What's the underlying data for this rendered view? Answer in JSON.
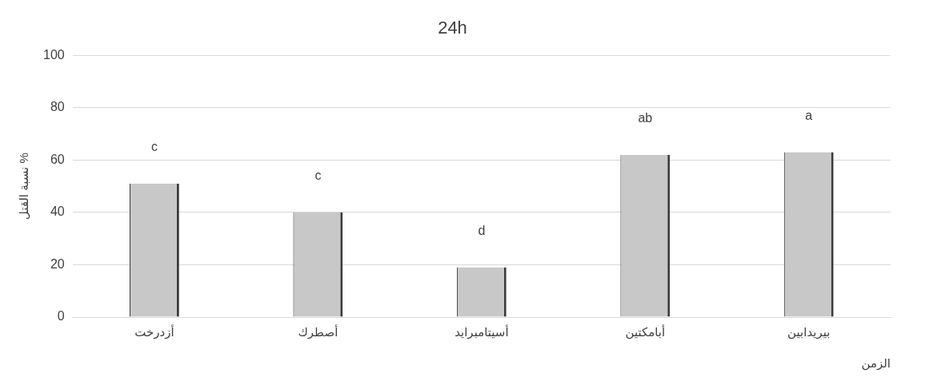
{
  "chart_data": {
    "type": "bar",
    "title": "24h",
    "xlabel": "الزمن",
    "ylabel": "نسبة القتل %",
    "categories": [
      "أزدرخت",
      "أصطرك",
      "أسيتامبرايد",
      "أبامكتين",
      "بيريدابين"
    ],
    "values": [
      51,
      40,
      19,
      62,
      63
    ],
    "color": "#c8c8c8",
    "ylim": [
      0,
      100
    ],
    "yticks": [
      0,
      20,
      40,
      60,
      80,
      100
    ],
    "grid": "y",
    "legend": false,
    "value_labels": [
      "c",
      "c",
      "d",
      "ab",
      "a"
    ]
  }
}
